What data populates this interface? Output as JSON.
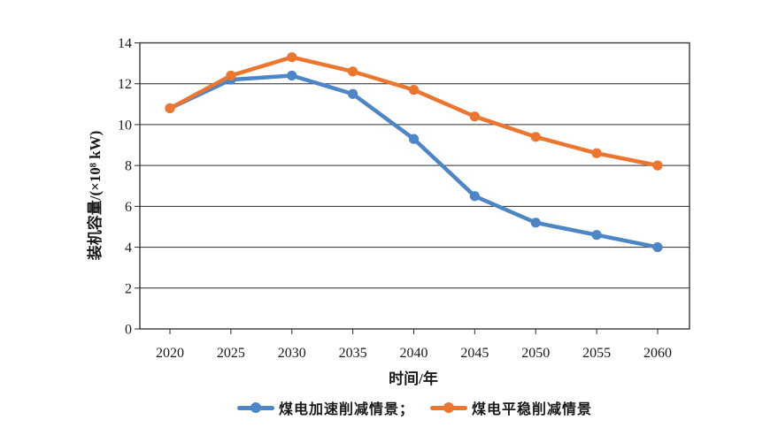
{
  "page": {
    "background": "#ffffff"
  },
  "chart_data": {
    "type": "line",
    "title": "",
    "x": [
      2020,
      2025,
      2030,
      2035,
      2040,
      2045,
      2050,
      2055,
      2060
    ],
    "xlabel": "时间/年",
    "ylabel": "装机容量/(×10⁸ kW)",
    "ylim": [
      0,
      14
    ],
    "ytick_step": 2,
    "xlim_years": [
      2020,
      2060
    ],
    "grid": "horizontal",
    "legend_position": "bottom",
    "axis_color": "#2a2a2a",
    "text_color": "#1a1a1a",
    "series": [
      {
        "name": "煤电加速削减情景",
        "legend_label": "煤电加速削减情景；",
        "color": "#4D86C6",
        "values": [
          10.8,
          12.2,
          12.4,
          11.5,
          9.3,
          6.5,
          5.2,
          4.6,
          4.0
        ]
      },
      {
        "name": "煤电平稳削减情景",
        "legend_label": "煤电平稳削减情景",
        "color": "#EC7630",
        "values": [
          10.8,
          12.4,
          13.3,
          12.6,
          11.7,
          10.4,
          9.4,
          8.6,
          8.0
        ]
      }
    ]
  }
}
